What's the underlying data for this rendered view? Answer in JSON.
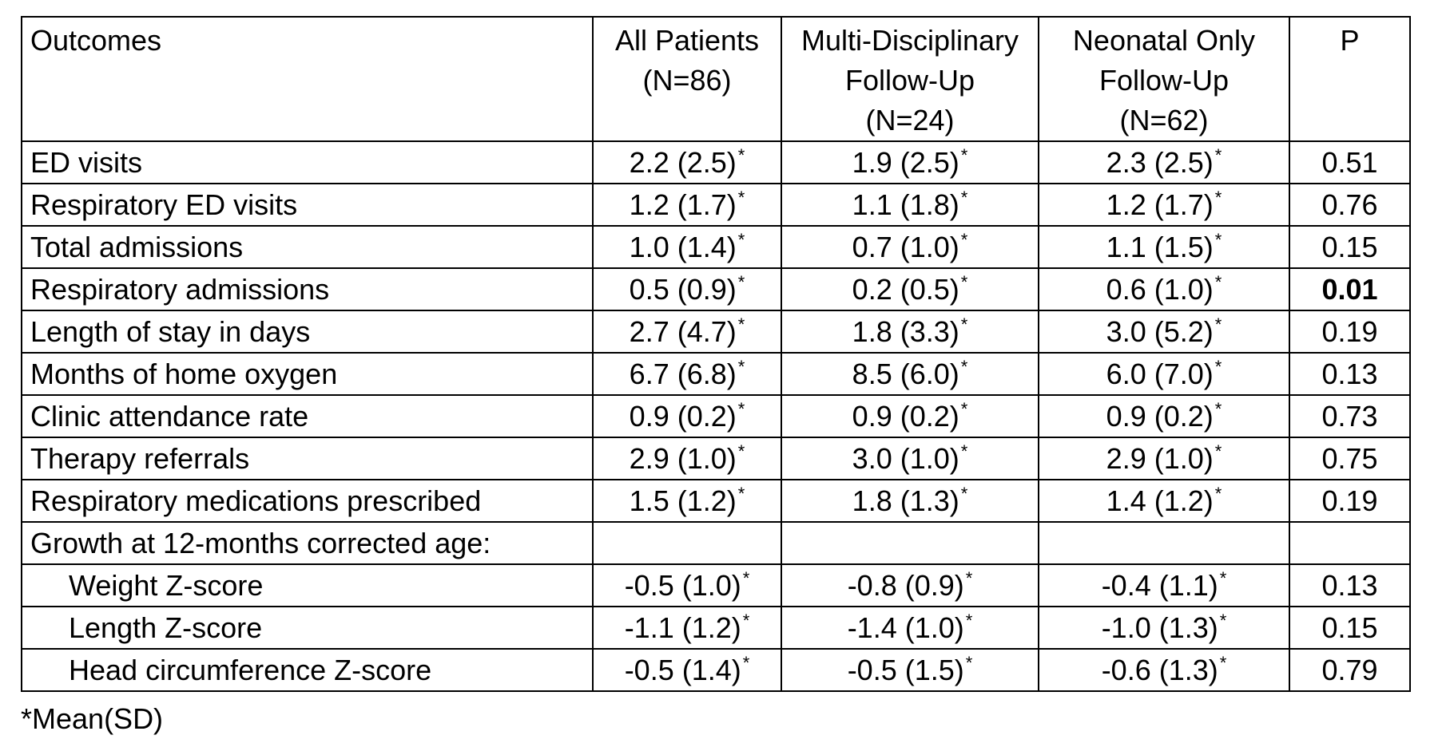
{
  "table": {
    "headers": [
      {
        "lines": [
          "Outcomes"
        ]
      },
      {
        "lines": [
          "All Patients",
          "(N=86)"
        ]
      },
      {
        "lines": [
          "Multi-Disciplinary",
          "Follow-Up",
          "(N=24)"
        ]
      },
      {
        "lines": [
          "Neonatal Only",
          "Follow-Up",
          "(N=62)"
        ]
      },
      {
        "lines": [
          "P"
        ]
      }
    ],
    "value_marker": "*",
    "rows": [
      {
        "label": "ED visits",
        "all": "2.2 (2.5)",
        "multi": "1.9 (2.5)",
        "neonatal": "2.3 (2.5)",
        "p": "0.51"
      },
      {
        "label": "Respiratory ED visits",
        "all": "1.2 (1.7)",
        "multi": "1.1 (1.8)",
        "neonatal": "1.2 (1.7)",
        "p": "0.76"
      },
      {
        "label": "Total admissions",
        "all": "1.0 (1.4)",
        "multi": "0.7 (1.0)",
        "neonatal": "1.1 (1.5)",
        "p": "0.15"
      },
      {
        "label": "Respiratory admissions",
        "all": "0.5 (0.9)",
        "multi": "0.2 (0.5)",
        "neonatal": "0.6 (1.0)",
        "p": "0.01"
      },
      {
        "label": "Length of stay in days",
        "all": "2.7 (4.7)",
        "multi": "1.8 (3.3)",
        "neonatal": "3.0 (5.2)",
        "p": "0.19"
      },
      {
        "label": "Months of home oxygen",
        "all": "6.7 (6.8)",
        "multi": "8.5 (6.0)",
        "neonatal": "6.0 (7.0)",
        "p": "0.13"
      },
      {
        "label": "Clinic attendance rate",
        "all": "0.9 (0.2)",
        "multi": "0.9 (0.2)",
        "neonatal": "0.9 (0.2)",
        "p": "0.73"
      },
      {
        "label": "Therapy referrals",
        "all": "2.9 (1.0)",
        "multi": "3.0 (1.0)",
        "neonatal": "2.9 (1.0)",
        "p": "0.75"
      },
      {
        "label": "Respiratory medications prescribed",
        "all": "1.5 (1.2)",
        "multi": "1.8 (1.3)",
        "neonatal": "1.4 (1.2)",
        "p": "0.19"
      },
      {
        "label": "Growth at 12-months corrected age:",
        "all": "",
        "multi": "",
        "neonatal": "",
        "p": ""
      },
      {
        "label": "Weight Z-score",
        "all": "-0.5 (1.0)",
        "multi": "-0.8 (0.9)",
        "neonatal": "-0.4 (1.1)",
        "p": "0.13"
      },
      {
        "label": "Length Z-score",
        "all": "-1.1 (1.2)",
        "multi": "-1.4 (1.0)",
        "neonatal": "-1.0 (1.3)",
        "p": "0.15"
      },
      {
        "label": "Head circumference Z-score",
        "all": "-0.5 (1.4)",
        "multi": "-0.5 (1.5)",
        "neonatal": "-0.6 (1.3)",
        "p": "0.79"
      }
    ]
  },
  "footnote": "*Mean(SD)"
}
